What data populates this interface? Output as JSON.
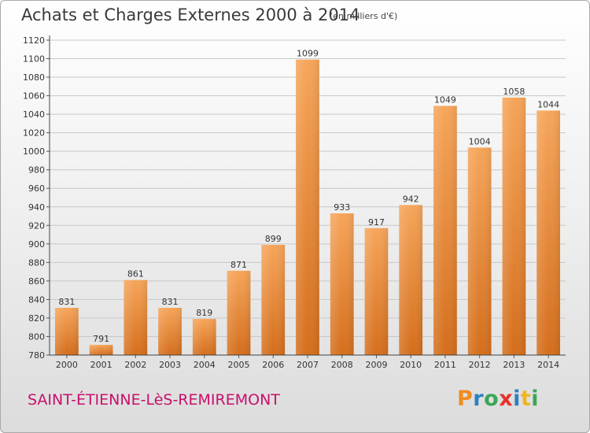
{
  "header": {
    "title": "Achats et Charges Externes 2000 à 2014",
    "unit": "(en milliers d'€)"
  },
  "footer": {
    "commune": "SAINT-ÉTIENNE-LèS-REMIREMONT",
    "logo_letters": [
      "P",
      "r",
      "o",
      "x",
      "i",
      "t",
      "i"
    ],
    "logo_colors": [
      "#f08c1e",
      "#2f7fc1",
      "#3aa655",
      "#e6322a",
      "#2f7fc1",
      "#f0b41e",
      "#3aa655"
    ]
  },
  "chart_data": {
    "type": "bar",
    "categories": [
      "2000",
      "2001",
      "2002",
      "2003",
      "2004",
      "2005",
      "2006",
      "2007",
      "2008",
      "2009",
      "2010",
      "2011",
      "2012",
      "2013",
      "2014"
    ],
    "values": [
      831,
      791,
      861,
      831,
      819,
      871,
      899,
      1099,
      933,
      917,
      942,
      1049,
      1004,
      1058,
      1044
    ],
    "title": "Achats et Charges Externes 2000 à 2014",
    "xlabel": "",
    "ylabel": "",
    "ylim": [
      780,
      1120
    ],
    "yticks": [
      780,
      800,
      820,
      840,
      860,
      880,
      900,
      920,
      940,
      960,
      980,
      1000,
      1020,
      1040,
      1060,
      1080,
      1100,
      1120
    ],
    "grid": true,
    "bar_color": "#f0923a"
  }
}
